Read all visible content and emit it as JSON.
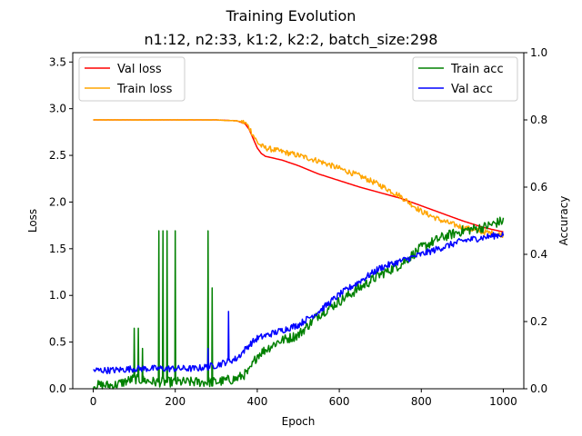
{
  "chart_data": {
    "type": "line",
    "title": "Training Evolution",
    "subtitle": "n1:12, n2:33, k1:2, k2:2, batch_size:298",
    "xlabel": "Epoch",
    "ylabel_left": "Loss",
    "ylabel_right": "Accuracy",
    "xlim": [
      -50,
      1050
    ],
    "ylim_left": [
      0,
      3.6
    ],
    "ylim_right": [
      0,
      1.0
    ],
    "xticks": [
      0,
      200,
      400,
      600,
      800,
      1000
    ],
    "yticks_left": [
      0.0,
      0.5,
      1.0,
      1.5,
      2.0,
      2.5,
      3.0,
      3.5
    ],
    "yticks_right": [
      0.0,
      0.2,
      0.4,
      0.6,
      0.8,
      1.0
    ],
    "grid": false,
    "legends": [
      {
        "placement": "top-left",
        "entries": [
          "Val loss",
          "Train loss"
        ]
      },
      {
        "placement": "top-right",
        "entries": [
          "Train acc",
          "Val acc"
        ]
      }
    ],
    "series": [
      {
        "name": "Val loss",
        "axis": "left",
        "color": "#ff0000",
        "noise": 0,
        "x": [
          0,
          100,
          200,
          300,
          350,
          370,
          380,
          390,
          400,
          410,
          420,
          440,
          460,
          500,
          550,
          600,
          650,
          700,
          750,
          800,
          850,
          900,
          950,
          1000
        ],
        "y": [
          2.88,
          2.88,
          2.88,
          2.88,
          2.87,
          2.84,
          2.78,
          2.68,
          2.58,
          2.52,
          2.49,
          2.47,
          2.45,
          2.39,
          2.3,
          2.23,
          2.16,
          2.1,
          2.04,
          1.96,
          1.88,
          1.8,
          1.73,
          1.68
        ]
      },
      {
        "name": "Train loss",
        "axis": "left",
        "color": "#ffa500",
        "noise": 0.03,
        "x": [
          0,
          100,
          200,
          300,
          350,
          370,
          380,
          390,
          400,
          410,
          420,
          440,
          460,
          500,
          550,
          600,
          650,
          700,
          750,
          800,
          850,
          900,
          950,
          1000
        ],
        "y": [
          2.88,
          2.88,
          2.88,
          2.88,
          2.87,
          2.85,
          2.8,
          2.72,
          2.64,
          2.6,
          2.58,
          2.56,
          2.54,
          2.5,
          2.44,
          2.36,
          2.28,
          2.18,
          2.06,
          1.9,
          1.8,
          1.73,
          1.68,
          1.65
        ]
      },
      {
        "name": "Train acc",
        "axis": "right",
        "color": "#008000",
        "noise": 0.015,
        "x": [
          0,
          50,
          100,
          150,
          200,
          250,
          300,
          350,
          380,
          400,
          450,
          500,
          550,
          600,
          650,
          700,
          750,
          800,
          850,
          900,
          950,
          1000
        ],
        "y": [
          0.01,
          0.01,
          0.03,
          0.02,
          0.02,
          0.02,
          0.02,
          0.03,
          0.05,
          0.1,
          0.14,
          0.16,
          0.22,
          0.26,
          0.3,
          0.34,
          0.37,
          0.42,
          0.45,
          0.47,
          0.48,
          0.5
        ],
        "spikes": [
          {
            "x": 100,
            "y": 0.18
          },
          {
            "x": 110,
            "y": 0.18
          },
          {
            "x": 120,
            "y": 0.12
          },
          {
            "x": 160,
            "y": 0.47
          },
          {
            "x": 170,
            "y": 0.47
          },
          {
            "x": 180,
            "y": 0.47
          },
          {
            "x": 200,
            "y": 0.47
          },
          {
            "x": 280,
            "y": 0.47
          },
          {
            "x": 290,
            "y": 0.3
          }
        ]
      },
      {
        "name": "Val acc",
        "axis": "right",
        "color": "#0000ff",
        "noise": 0.01,
        "x": [
          0,
          50,
          100,
          150,
          200,
          250,
          300,
          350,
          380,
          400,
          450,
          500,
          550,
          600,
          650,
          700,
          750,
          800,
          850,
          900,
          950,
          1000
        ],
        "y": [
          0.055,
          0.055,
          0.06,
          0.06,
          0.06,
          0.06,
          0.07,
          0.09,
          0.13,
          0.15,
          0.17,
          0.19,
          0.23,
          0.28,
          0.32,
          0.36,
          0.38,
          0.4,
          0.42,
          0.44,
          0.45,
          0.46
        ],
        "spikes": [
          {
            "x": 280,
            "y": 0.12
          },
          {
            "x": 330,
            "y": 0.23
          }
        ]
      }
    ]
  }
}
